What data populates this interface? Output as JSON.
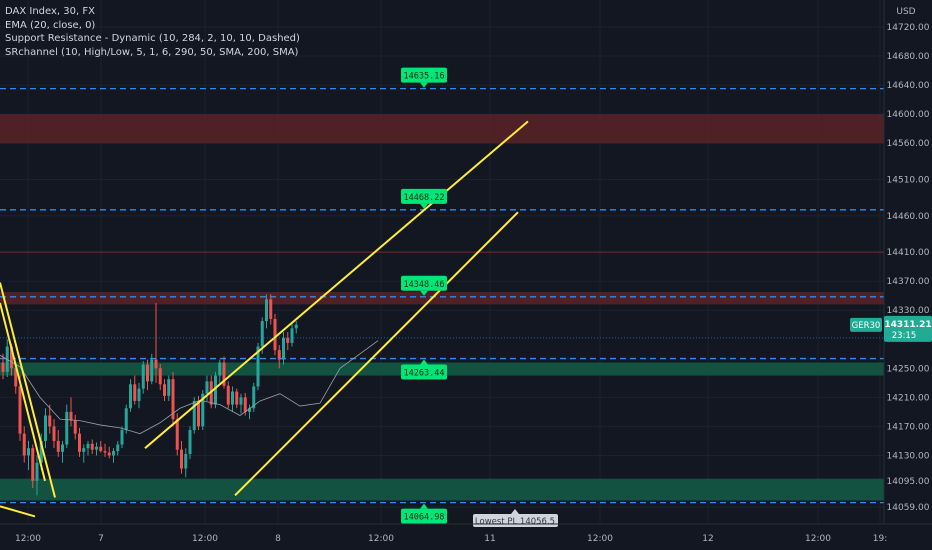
{
  "legend": {
    "symbol": "DAX Index, 30, FX",
    "ema": "EMA (20, close, 0)",
    "sr": "Support Resistance - Dynamic (10, 284, 2, 10, 10, Dashed)",
    "srchannel": "SRchannel (10, High/Low, 5, 1, 6, 290, 50, SMA, 200, SMA)"
  },
  "axis": {
    "currency": "USD",
    "price_ticks": [
      14720,
      14680,
      14640,
      14600,
      14560,
      14510,
      14460,
      14410,
      14370,
      14330,
      14250,
      14210,
      14170,
      14130,
      14095,
      14059
    ],
    "price_tick_labels": [
      "14720.00",
      "14680.00",
      "14640.00",
      "14600.00",
      "14560.00",
      "14510.00",
      "14460.00",
      "14410.00",
      "14370.00",
      "14330.00",
      "14250.00",
      "14210.00",
      "14170.00",
      "14130.00",
      "14095.00",
      "14059.00"
    ],
    "time_labels": [
      "12:00",
      "7",
      "12:00",
      "8",
      "12:00",
      "11",
      "12:00",
      "12",
      "12:00",
      "19:"
    ]
  },
  "current_price": {
    "symbol": "GER30",
    "price": "14311.21",
    "countdown": "23:15"
  },
  "levels": [
    {
      "value": 14635.16,
      "label": "14635.16",
      "side": "above"
    },
    {
      "value": 14468.22,
      "label": "14468.22",
      "side": "above"
    },
    {
      "value": 14348.46,
      "label": "14348.46",
      "side": "above"
    },
    {
      "value": 14263.44,
      "label": "14263.44",
      "side": "below"
    },
    {
      "value": 14064.98,
      "label": "14064.98",
      "side": "below"
    }
  ],
  "lowest_pl": "Lowest PL 14056.5",
  "colors": {
    "background": "#131722",
    "up": "#26a69a",
    "down": "#ef5350",
    "resistance_zone": "#5a2327",
    "support_zone": "#145c45",
    "dashed_level": "#2f8cf0",
    "channel": "#ffeb3b",
    "ema": "#9aa0ad"
  },
  "chart_data": {
    "type": "candlestick",
    "ylim": [
      14045,
      14740
    ],
    "resistance_zones": [
      [
        14560,
        14600
      ],
      [
        14338,
        14355
      ]
    ],
    "support_zones": [
      [
        14240,
        14258
      ],
      [
        14068,
        14098
      ]
    ],
    "thin_resistance_line": 14410,
    "channel_lines": [
      {
        "from": [
          0,
          14368
        ],
        "to": [
          55,
          14072
        ]
      },
      {
        "from": [
          145,
          14140
        ],
        "to": [
          528,
          14590
        ]
      },
      {
        "from": [
          235,
          14075
        ],
        "to": [
          518,
          14465
        ]
      },
      {
        "from": [
          0,
          14340
        ],
        "to": [
          45,
          14095
        ]
      },
      {
        "from": [
          0,
          14060
        ],
        "to": [
          35,
          14046
        ]
      }
    ],
    "candle_step": 4.25,
    "candle_start_x": 3,
    "candles": [
      [
        14258,
        14270,
        14235,
        14245
      ],
      [
        14245,
        14290,
        14238,
        14280
      ],
      [
        14280,
        14284,
        14240,
        14250
      ],
      [
        14250,
        14258,
        14215,
        14225
      ],
      [
        14225,
        14240,
        14150,
        14160
      ],
      [
        14160,
        14170,
        14120,
        14130
      ],
      [
        14130,
        14150,
        14110,
        14140
      ],
      [
        14140,
        14145,
        14085,
        14095
      ],
      [
        14095,
        14130,
        14075,
        14120
      ],
      [
        14120,
        14160,
        14110,
        14150
      ],
      [
        14150,
        14195,
        14140,
        14185
      ],
      [
        14185,
        14200,
        14160,
        14170
      ],
      [
        14170,
        14180,
        14140,
        14150
      ],
      [
        14150,
        14165,
        14128,
        14135
      ],
      [
        14135,
        14150,
        14120,
        14145
      ],
      [
        14145,
        14200,
        14140,
        14190
      ],
      [
        14190,
        14210,
        14170,
        14178
      ],
      [
        14178,
        14186,
        14152,
        14160
      ],
      [
        14160,
        14168,
        14128,
        14135
      ],
      [
        14135,
        14145,
        14120,
        14140
      ],
      [
        14140,
        14150,
        14130,
        14146
      ],
      [
        14146,
        14152,
        14132,
        14138
      ],
      [
        14138,
        14148,
        14130,
        14142
      ],
      [
        14142,
        14150,
        14134,
        14136
      ],
      [
        14136,
        14146,
        14128,
        14134
      ],
      [
        14134,
        14142,
        14126,
        14130
      ],
      [
        14130,
        14140,
        14120,
        14136
      ],
      [
        14136,
        14150,
        14130,
        14145
      ],
      [
        14145,
        14170,
        14140,
        14165
      ],
      [
        14165,
        14200,
        14160,
        14195
      ],
      [
        14195,
        14235,
        14190,
        14228
      ],
      [
        14228,
        14240,
        14200,
        14205
      ],
      [
        14205,
        14230,
        14195,
        14222
      ],
      [
        14222,
        14260,
        14215,
        14255
      ],
      [
        14255,
        14262,
        14220,
        14232
      ],
      [
        14232,
        14270,
        14228,
        14262
      ],
      [
        14262,
        14340,
        14230,
        14250
      ],
      [
        14250,
        14256,
        14220,
        14228
      ],
      [
        14228,
        14235,
        14205,
        14212
      ],
      [
        14212,
        14240,
        14205,
        14235
      ],
      [
        14235,
        14245,
        14170,
        14180
      ],
      [
        14180,
        14188,
        14130,
        14138
      ],
      [
        14138,
        14150,
        14105,
        14112
      ],
      [
        14112,
        14140,
        14100,
        14132
      ],
      [
        14132,
        14170,
        14125,
        14165
      ],
      [
        14165,
        14210,
        14160,
        14205
      ],
      [
        14205,
        14212,
        14165,
        14170
      ],
      [
        14170,
        14220,
        14165,
        14215
      ],
      [
        14215,
        14240,
        14205,
        14232
      ],
      [
        14232,
        14240,
        14195,
        14200
      ],
      [
        14200,
        14245,
        14195,
        14240
      ],
      [
        14240,
        14262,
        14230,
        14258
      ],
      [
        14258,
        14266,
        14222,
        14226
      ],
      [
        14226,
        14232,
        14195,
        14200
      ],
      [
        14200,
        14225,
        14190,
        14218
      ],
      [
        14218,
        14222,
        14195,
        14200
      ],
      [
        14200,
        14215,
        14188,
        14210
      ],
      [
        14210,
        14216,
        14185,
        14190
      ],
      [
        14190,
        14200,
        14180,
        14195
      ],
      [
        14195,
        14230,
        14190,
        14225
      ],
      [
        14225,
        14285,
        14220,
        14280
      ],
      [
        14280,
        14320,
        14270,
        14315
      ],
      [
        14315,
        14352,
        14305,
        14345
      ],
      [
        14345,
        14352,
        14310,
        14318
      ],
      [
        14318,
        14325,
        14268,
        14275
      ],
      [
        14275,
        14282,
        14250,
        14262
      ],
      [
        14262,
        14300,
        14255,
        14292
      ],
      [
        14292,
        14300,
        14275,
        14285
      ],
      [
        14285,
        14312,
        14280,
        14305
      ],
      [
        14305,
        14315,
        14298,
        14310
      ]
    ],
    "ema": [
      [
        0,
        14268
      ],
      [
        20,
        14252
      ],
      [
        40,
        14210
      ],
      [
        60,
        14180
      ],
      [
        80,
        14178
      ],
      [
        100,
        14172
      ],
      [
        120,
        14168
      ],
      [
        140,
        14160
      ],
      [
        160,
        14175
      ],
      [
        180,
        14195
      ],
      [
        200,
        14206
      ],
      [
        220,
        14200
      ],
      [
        240,
        14185
      ],
      [
        260,
        14205
      ],
      [
        280,
        14215
      ],
      [
        300,
        14198
      ],
      [
        320,
        14202
      ],
      [
        340,
        14250
      ],
      [
        360,
        14270
      ],
      [
        378,
        14288
      ]
    ]
  }
}
